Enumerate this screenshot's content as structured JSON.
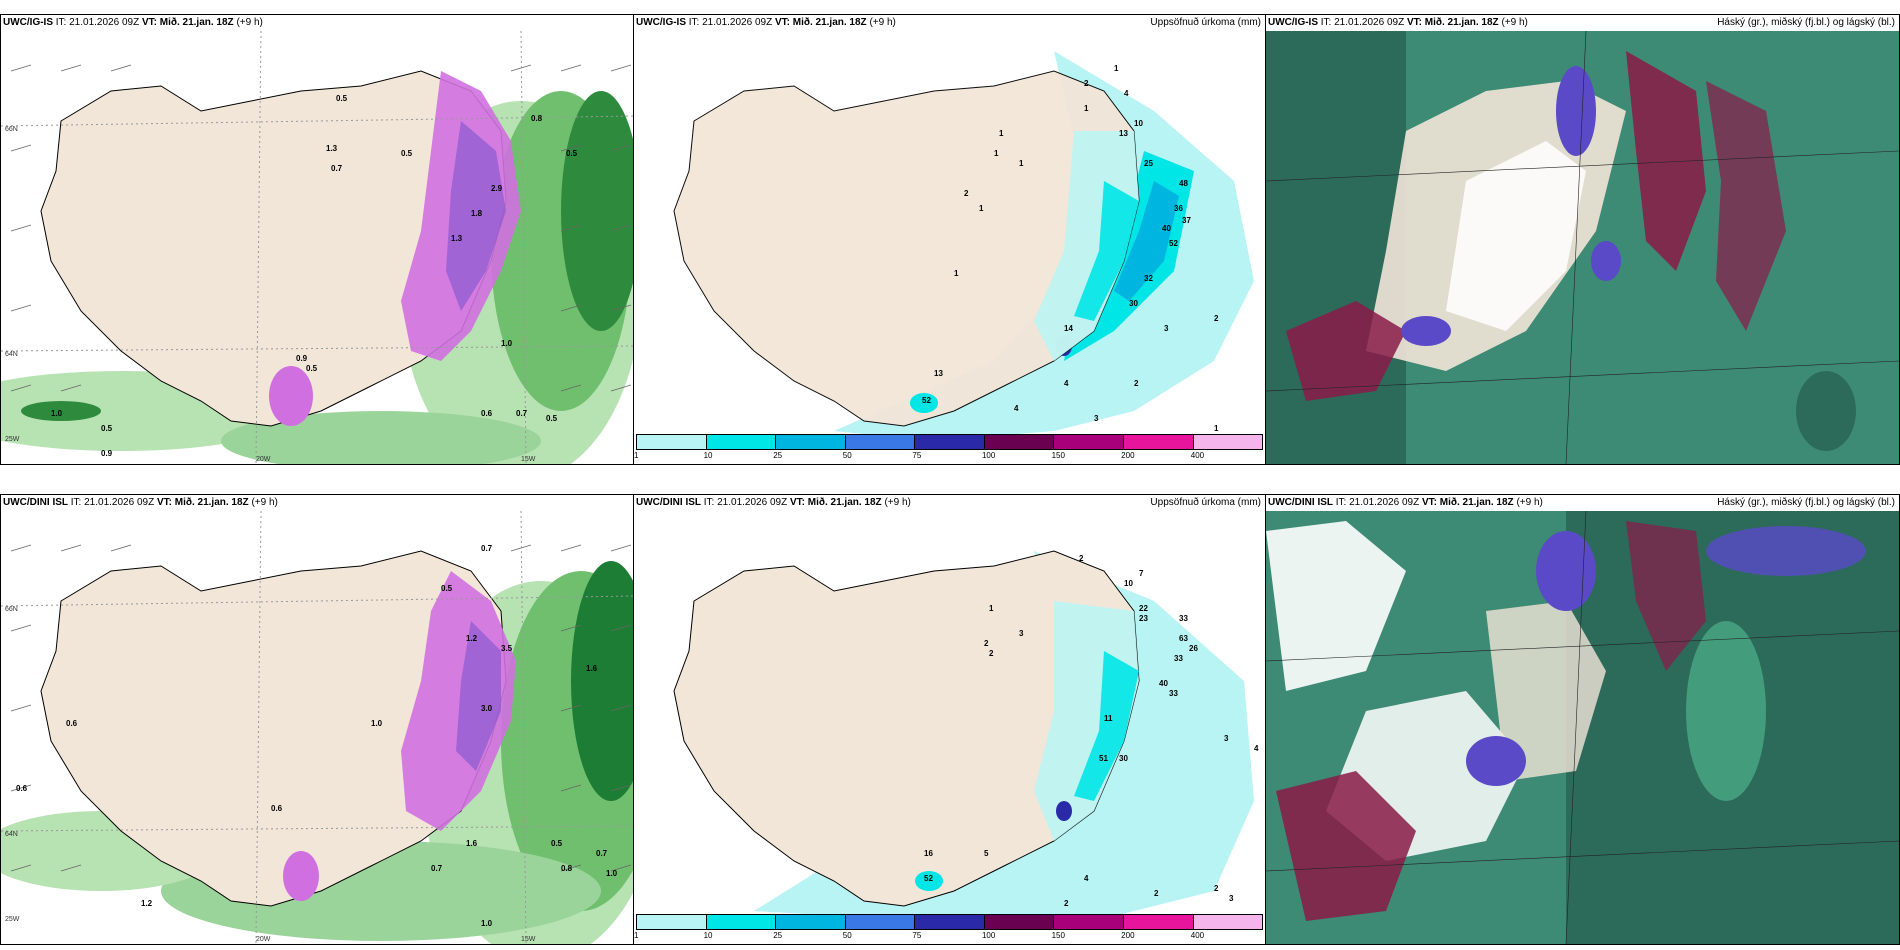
{
  "rows": [
    {
      "model": "UWC/IG-IS",
      "init": "IT: 21.01.2026 09Z",
      "valid_label": "VT:",
      "valid": "Mið. 21.jan. 18Z",
      "lead": "(+9 h)",
      "precip_title": "Uppsöfnuð úrkoma (mm)",
      "cloud_title": "Háský (gr.), miðský (fj.bl.) og lágský (bl.)",
      "lat_labels": [
        "66N",
        "64N",
        "25W"
      ],
      "lon_labels": [
        "20W",
        "15W"
      ],
      "precip_numbers": [
        "1",
        "2",
        "1",
        "4",
        "10",
        "13",
        "1",
        "1",
        "1",
        "2",
        "1",
        "25",
        "48",
        "36",
        "37",
        "40",
        "52",
        "32",
        "1",
        "14",
        "3",
        "30",
        "13",
        "52",
        "2",
        "2",
        "4",
        "1",
        "3",
        "4"
      ],
      "wind_numbers": [
        "0.5",
        "0.8",
        "0.5",
        "1.3",
        "0.7",
        "0.5",
        "2.9",
        "1.8",
        "1.3",
        "1.0",
        "0.5",
        "0.9",
        "0.6",
        "0.7",
        "0.5",
        "1.0",
        "0.5",
        "0.9"
      ]
    },
    {
      "model": "UWC/DINI ISL",
      "init": "IT: 21.01.2026 09Z",
      "valid_label": "VT:",
      "valid": "Mið. 21.jan. 18Z",
      "lead": "(+9 h)",
      "precip_title": "Uppsöfnuð úrkoma (mm)",
      "cloud_title": "Háský (gr.), miðský (fj.bl.) og lágský (bl.)",
      "lat_labels": [
        "66N",
        "64N",
        "25W"
      ],
      "lon_labels": [
        "20W",
        "15W"
      ],
      "precip_numbers": [
        "2",
        "10",
        "7",
        "22",
        "23",
        "33",
        "63",
        "26",
        "33",
        "40",
        "33",
        "2",
        "1",
        "2",
        "3",
        "11",
        "51",
        "30",
        "16",
        "52",
        "4",
        "3",
        "2",
        "5",
        "4",
        "2",
        "2",
        "3"
      ],
      "wind_numbers": [
        "0.7",
        "1.6",
        "0.5",
        "1.2",
        "3.5",
        "0.6",
        "0.6",
        "1.0",
        "3.0",
        "1.6",
        "0.5",
        "0.7",
        "1.0",
        "0.8",
        "0.7",
        "1.2",
        "0.6",
        "1.0"
      ]
    }
  ],
  "legend": {
    "labels": [
      "1",
      "10",
      "25",
      "50",
      "75",
      "100",
      "150",
      "200",
      "400"
    ],
    "colors": [
      "#b8f4f4",
      "#00e5e5",
      "#00b5e0",
      "#3a78e6",
      "#2a2aa8",
      "#6a0050",
      "#a8007a",
      "#e6159b",
      "#f4b4ec"
    ]
  },
  "colors": {
    "land": "#f2e6d8",
    "coast": "#000000",
    "sea_green_light": "#b7e2b2",
    "sea_green_dark": "#1e7d35",
    "precip_magenta": "#d070e0",
    "cloud_dark": "#2c6a5a",
    "cloud_mid": "#3d8a75",
    "cloud_high_red": "#8a1a48",
    "cloud_blue": "#5a4ac8"
  }
}
